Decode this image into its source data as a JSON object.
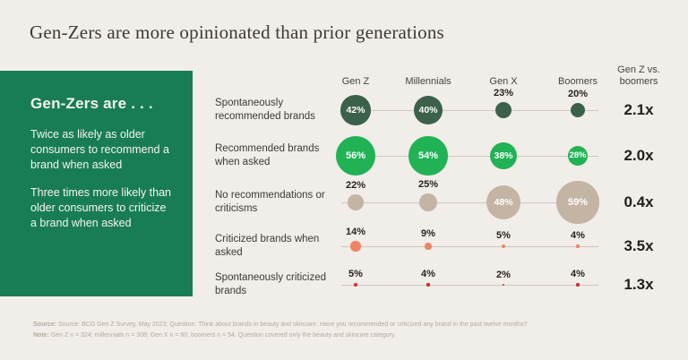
{
  "title": "Gen-Zers are more opinionated than prior generations",
  "sidebar": {
    "heading": "Gen-Zers are . . .",
    "points": [
      "Twice as likely as older consumers to recommend a brand when asked",
      "Three times more likely than older consumers to criticize a brand when asked"
    ]
  },
  "colors": {
    "background": "#f1ede8",
    "sidebar": "#187d55",
    "dark_green": "#3b614a",
    "bright_green": "#21b255",
    "tan": "#c3b4a3",
    "salmon": "#ef8465",
    "red": "#cf2e27",
    "grid_line": "#cbc6bf",
    "text": "#3d3a35",
    "value_label": "#26221c",
    "footer_text": "#b2aaa0"
  },
  "chart_data": {
    "type": "scatter",
    "subtype": "bubble-matrix",
    "title": "Gen-Zers are more opinionated than prior generations",
    "categories": [
      "Gen Z",
      "Millennials",
      "Gen X",
      "Boomers"
    ],
    "ratio_header": "Gen Z vs.\nboomers",
    "unit": "%",
    "size_encoding": "bubble diameter proportional to percentage",
    "legend": "none",
    "rows": [
      {
        "label": "Spontaneously recommended brands",
        "values": [
          42,
          40,
          23,
          20
        ],
        "ratio": "2.1x",
        "color": "dark_green",
        "value_label_placement": [
          "inside",
          "inside",
          "above",
          "above"
        ]
      },
      {
        "label": "Recommended brands when asked",
        "values": [
          56,
          54,
          38,
          28
        ],
        "ratio": "2.0x",
        "color": "bright_green",
        "value_label_placement": [
          "inside",
          "inside",
          "inside",
          "inside"
        ]
      },
      {
        "label": "No recommendations or criticisms",
        "values": [
          22,
          25,
          48,
          59
        ],
        "ratio": "0.4x",
        "color": "tan",
        "value_label_placement": [
          "above",
          "above",
          "inside",
          "inside"
        ]
      },
      {
        "label": "Criticized brands when asked",
        "values": [
          14,
          9,
          5,
          4
        ],
        "ratio": "3.5x",
        "color": "salmon",
        "value_label_placement": [
          "above",
          "above",
          "above",
          "above"
        ]
      },
      {
        "label": "Spontaneously criticized brands",
        "values": [
          5,
          4,
          2,
          4
        ],
        "ratio": "1.3x",
        "color": "red",
        "value_label_placement": [
          "above",
          "above",
          "above",
          "above"
        ]
      }
    ]
  },
  "footer": {
    "lines": [
      {
        "label": "Source:",
        "text": " Source: BCG Gen Z Survey, May 2023; Question: Think about brands in beauty and skincare. Have you recommended or criticized any brand in the past twelve months?"
      },
      {
        "label": "Note:",
        "text": " Gen Z n = 324; millennials n = 308; Gen X n = 60; boomers n = 54. Question covered only the beauty and skincare category."
      }
    ]
  }
}
